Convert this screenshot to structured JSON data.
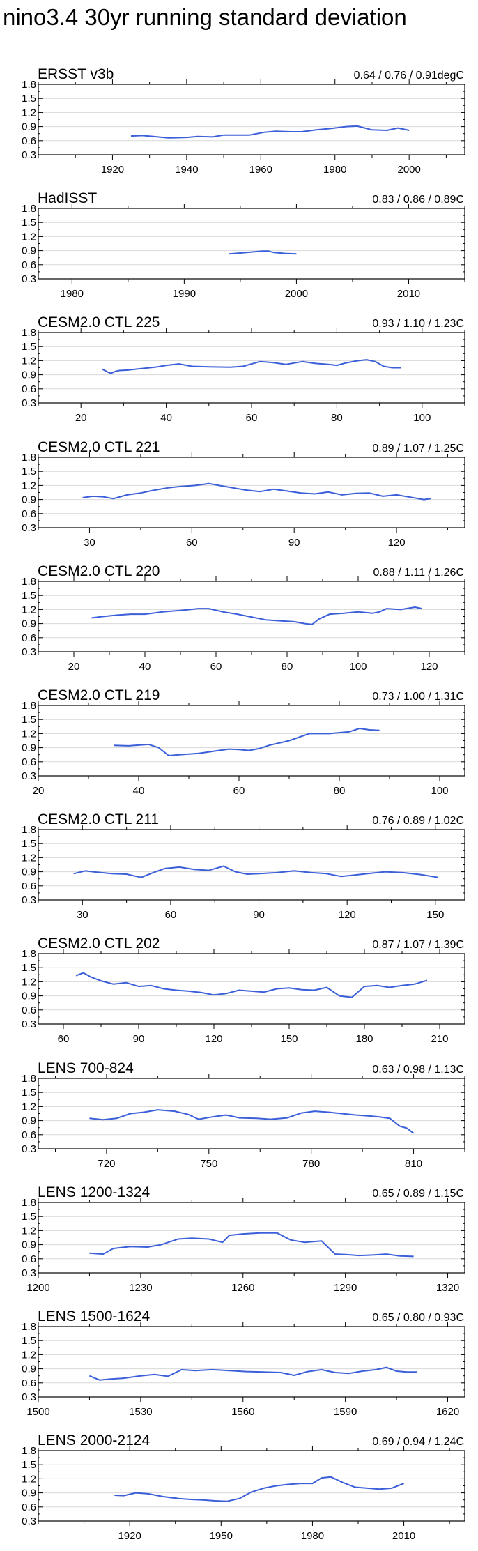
{
  "title": "nino3.4 30yr running standard deviation",
  "colors": {
    "line": "#3B5FD9",
    "axis": "#000000",
    "grid": "#D9D9D9",
    "text": "#000000"
  },
  "chart_data": [
    {
      "type": "line",
      "name": "ERSST v3b",
      "stats": "0.64 / 0.76 / 0.91degC",
      "xlim": [
        1900,
        2015
      ],
      "ylim": [
        0.3,
        1.8
      ],
      "xticks": [
        1920,
        1940,
        1960,
        1980,
        2000
      ],
      "yticks": [
        0.3,
        0.6,
        0.9,
        1.2,
        1.5,
        1.8
      ],
      "x": [
        1925,
        1928,
        1931,
        1935,
        1940,
        1943,
        1947,
        1950,
        1954,
        1957,
        1961,
        1964,
        1968,
        1971,
        1975,
        1979,
        1983,
        1986,
        1990,
        1994,
        1997,
        2000
      ],
      "values": [
        0.7,
        0.71,
        0.69,
        0.66,
        0.67,
        0.69,
        0.68,
        0.72,
        0.72,
        0.72,
        0.78,
        0.8,
        0.79,
        0.79,
        0.83,
        0.86,
        0.9,
        0.91,
        0.83,
        0.82,
        0.87,
        0.82
      ]
    },
    {
      "type": "line",
      "name": "HadISST",
      "stats": "0.83 / 0.86 / 0.89C",
      "xlim": [
        1977,
        2015
      ],
      "ylim": [
        0.3,
        1.8
      ],
      "xticks": [
        1980,
        1990,
        2000,
        2010
      ],
      "yticks": [
        0.3,
        0.6,
        0.9,
        1.2,
        1.5,
        1.8
      ],
      "x": [
        1994,
        1995,
        1996,
        1997,
        1997.5,
        1998,
        1999,
        2000
      ],
      "values": [
        0.83,
        0.85,
        0.87,
        0.89,
        0.89,
        0.86,
        0.84,
        0.83
      ]
    },
    {
      "type": "line",
      "name": "CESM2.0 CTL 225",
      "stats": "0.93 / 1.10 / 1.23C",
      "xlim": [
        10,
        110
      ],
      "ylim": [
        0.3,
        1.8
      ],
      "xticks": [
        20,
        40,
        60,
        80,
        100
      ],
      "yticks": [
        0.3,
        0.6,
        0.9,
        1.2,
        1.5,
        1.8
      ],
      "x": [
        25,
        26,
        27,
        28,
        29,
        31,
        33,
        35,
        38,
        40,
        43,
        46,
        50,
        55,
        58,
        62,
        65,
        68,
        72,
        75,
        78,
        80,
        82,
        85,
        87,
        89,
        91,
        93,
        95
      ],
      "values": [
        1.02,
        0.97,
        0.93,
        0.97,
        0.99,
        1.0,
        1.02,
        1.04,
        1.07,
        1.1,
        1.13,
        1.08,
        1.07,
        1.06,
        1.08,
        1.18,
        1.16,
        1.12,
        1.18,
        1.14,
        1.12,
        1.1,
        1.15,
        1.2,
        1.22,
        1.18,
        1.08,
        1.05,
        1.05
      ]
    },
    {
      "type": "line",
      "name": "CESM2.0 CTL 221",
      "stats": "0.89 / 1.07 / 1.25C",
      "xlim": [
        15,
        140
      ],
      "ylim": [
        0.3,
        1.8
      ],
      "xticks": [
        30,
        60,
        90,
        120
      ],
      "yticks": [
        0.3,
        0.6,
        0.9,
        1.2,
        1.5,
        1.8
      ],
      "x": [
        28,
        31,
        34,
        37,
        41,
        45,
        49,
        53,
        57,
        61,
        65,
        68,
        72,
        76,
        80,
        84,
        88,
        92,
        96,
        100,
        104,
        108,
        112,
        116,
        120,
        124,
        128,
        130
      ],
      "values": [
        0.94,
        0.97,
        0.96,
        0.92,
        1.0,
        1.04,
        1.1,
        1.15,
        1.18,
        1.2,
        1.24,
        1.2,
        1.15,
        1.1,
        1.07,
        1.12,
        1.08,
        1.04,
        1.02,
        1.06,
        1.0,
        1.03,
        1.04,
        0.97,
        1.0,
        0.95,
        0.9,
        0.92
      ]
    },
    {
      "type": "line",
      "name": "CESM2.0 CTL 220",
      "stats": "0.88 / 1.11 / 1.26C",
      "xlim": [
        10,
        130
      ],
      "ylim": [
        0.3,
        1.8
      ],
      "xticks": [
        20,
        40,
        60,
        80,
        100,
        120
      ],
      "yticks": [
        0.3,
        0.6,
        0.9,
        1.2,
        1.5,
        1.8
      ],
      "x": [
        25,
        28,
        32,
        36,
        40,
        45,
        50,
        55,
        58,
        62,
        66,
        70,
        74,
        78,
        82,
        85,
        87,
        89,
        92,
        96,
        100,
        104,
        106,
        108,
        112,
        116,
        118
      ],
      "values": [
        1.02,
        1.05,
        1.08,
        1.1,
        1.1,
        1.15,
        1.18,
        1.22,
        1.22,
        1.15,
        1.1,
        1.04,
        0.98,
        0.96,
        0.94,
        0.9,
        0.88,
        1.0,
        1.1,
        1.12,
        1.15,
        1.12,
        1.15,
        1.22,
        1.2,
        1.25,
        1.22
      ]
    },
    {
      "type": "line",
      "name": "CESM2.0 CTL 219",
      "stats": "0.73 / 1.00 / 1.31C",
      "xlim": [
        20,
        105
      ],
      "ylim": [
        0.3,
        1.8
      ],
      "xticks": [
        20,
        40,
        60,
        80,
        100
      ],
      "yticks": [
        0.3,
        0.6,
        0.9,
        1.2,
        1.5,
        1.8
      ],
      "x": [
        35,
        38,
        42,
        44,
        46,
        48,
        52,
        56,
        58,
        60,
        62,
        64,
        66,
        70,
        74,
        78,
        82,
        84,
        86,
        88
      ],
      "values": [
        0.95,
        0.94,
        0.97,
        0.9,
        0.73,
        0.75,
        0.78,
        0.84,
        0.87,
        0.86,
        0.84,
        0.88,
        0.95,
        1.05,
        1.2,
        1.2,
        1.24,
        1.31,
        1.28,
        1.27
      ]
    },
    {
      "type": "line",
      "name": "CESM2.0 CTL 211",
      "stats": "0.76 / 0.89 / 1.02C",
      "xlim": [
        15,
        160
      ],
      "ylim": [
        0.3,
        1.8
      ],
      "xticks": [
        30,
        60,
        90,
        120,
        150
      ],
      "yticks": [
        0.3,
        0.6,
        0.9,
        1.2,
        1.5,
        1.8
      ],
      "x": [
        27,
        31,
        35,
        40,
        45,
        50,
        54,
        58,
        63,
        68,
        73,
        78,
        82,
        86,
        90,
        96,
        102,
        108,
        113,
        118,
        121,
        127,
        133,
        139,
        145,
        151
      ],
      "values": [
        0.86,
        0.92,
        0.89,
        0.86,
        0.85,
        0.78,
        0.88,
        0.97,
        1.0,
        0.95,
        0.93,
        1.02,
        0.9,
        0.85,
        0.86,
        0.88,
        0.92,
        0.88,
        0.86,
        0.8,
        0.82,
        0.86,
        0.9,
        0.88,
        0.84,
        0.78
      ]
    },
    {
      "type": "line",
      "name": "CESM2.0 CTL 202",
      "stats": "0.87 / 1.07 / 1.39C",
      "xlim": [
        50,
        220
      ],
      "ylim": [
        0.3,
        1.8
      ],
      "xticks": [
        60,
        90,
        120,
        150,
        180,
        210
      ],
      "yticks": [
        0.3,
        0.6,
        0.9,
        1.2,
        1.5,
        1.8
      ],
      "x": [
        65,
        68,
        71,
        75,
        80,
        85,
        90,
        95,
        100,
        105,
        110,
        115,
        120,
        125,
        130,
        135,
        140,
        145,
        150,
        155,
        160,
        165,
        170,
        175,
        180,
        185,
        190,
        195,
        200,
        205
      ],
      "values": [
        1.33,
        1.39,
        1.3,
        1.22,
        1.15,
        1.18,
        1.1,
        1.12,
        1.05,
        1.02,
        1.0,
        0.97,
        0.92,
        0.95,
        1.02,
        1.0,
        0.98,
        1.05,
        1.07,
        1.03,
        1.02,
        1.08,
        0.9,
        0.87,
        1.1,
        1.12,
        1.08,
        1.12,
        1.15,
        1.23
      ]
    },
    {
      "type": "line",
      "name": "LENS 700-824",
      "stats": "0.63 / 0.98 / 1.13C",
      "xlim": [
        700,
        825
      ],
      "ylim": [
        0.3,
        1.8
      ],
      "xticks": [
        720,
        750,
        780,
        810
      ],
      "yticks": [
        0.3,
        0.6,
        0.9,
        1.2,
        1.5,
        1.8
      ],
      "x": [
        715,
        719,
        723,
        727,
        731,
        735,
        740,
        744,
        747,
        751,
        755,
        759,
        764,
        768,
        773,
        777,
        781,
        785,
        789,
        793,
        797,
        800,
        803,
        806,
        808,
        810
      ],
      "values": [
        0.95,
        0.92,
        0.95,
        1.05,
        1.08,
        1.13,
        1.1,
        1.03,
        0.93,
        0.98,
        1.02,
        0.96,
        0.95,
        0.93,
        0.96,
        1.06,
        1.1,
        1.08,
        1.05,
        1.02,
        1.0,
        0.98,
        0.95,
        0.78,
        0.74,
        0.63
      ]
    },
    {
      "type": "line",
      "name": "LENS 1200-1324",
      "stats": "0.65 / 0.89 / 1.15C",
      "xlim": [
        1200,
        1325
      ],
      "ylim": [
        0.3,
        1.8
      ],
      "xticks": [
        1200,
        1230,
        1260,
        1290,
        1320
      ],
      "yticks": [
        0.3,
        0.6,
        0.9,
        1.2,
        1.5,
        1.8
      ],
      "x": [
        1215,
        1219,
        1222,
        1227,
        1232,
        1236,
        1241,
        1245,
        1250,
        1254,
        1256,
        1260,
        1265,
        1270,
        1274,
        1278,
        1283,
        1287,
        1290,
        1294,
        1298,
        1302,
        1306,
        1310
      ],
      "values": [
        0.72,
        0.7,
        0.82,
        0.86,
        0.85,
        0.9,
        1.02,
        1.04,
        1.02,
        0.95,
        1.1,
        1.13,
        1.15,
        1.15,
        1.0,
        0.95,
        0.98,
        0.7,
        0.69,
        0.67,
        0.68,
        0.7,
        0.66,
        0.65
      ]
    },
    {
      "type": "line",
      "name": "LENS 1500-1624",
      "stats": "0.65 / 0.80 / 0.93C",
      "xlim": [
        1500,
        1625
      ],
      "ylim": [
        0.3,
        1.8
      ],
      "xticks": [
        1500,
        1530,
        1560,
        1590,
        1620
      ],
      "yticks": [
        0.3,
        0.6,
        0.9,
        1.2,
        1.5,
        1.8
      ],
      "x": [
        1515,
        1518,
        1521,
        1525,
        1530,
        1534,
        1538,
        1542,
        1546,
        1551,
        1556,
        1561,
        1566,
        1571,
        1575,
        1579,
        1583,
        1587,
        1591,
        1595,
        1599,
        1602,
        1605,
        1608,
        1611
      ],
      "values": [
        0.75,
        0.66,
        0.68,
        0.7,
        0.75,
        0.78,
        0.74,
        0.88,
        0.86,
        0.88,
        0.86,
        0.84,
        0.83,
        0.82,
        0.76,
        0.84,
        0.88,
        0.82,
        0.8,
        0.85,
        0.88,
        0.93,
        0.85,
        0.83,
        0.83
      ]
    },
    {
      "type": "line",
      "name": "LENS 2000-2124",
      "stats": "0.69 / 0.94 / 1.24C",
      "xlim": [
        1890,
        2030
      ],
      "ylim": [
        0.3,
        1.8
      ],
      "xticks": [
        1920,
        1950,
        1980,
        2010
      ],
      "yticks": [
        0.3,
        0.6,
        0.9,
        1.2,
        1.5,
        1.8
      ],
      "x": [
        1915,
        1918,
        1922,
        1926,
        1931,
        1936,
        1940,
        1944,
        1948,
        1952,
        1956,
        1960,
        1964,
        1968,
        1972,
        1976,
        1980,
        1983,
        1986,
        1990,
        1994,
        1998,
        2002,
        2006,
        2010
      ],
      "values": [
        0.85,
        0.84,
        0.9,
        0.88,
        0.82,
        0.78,
        0.76,
        0.75,
        0.73,
        0.72,
        0.78,
        0.92,
        1.0,
        1.05,
        1.08,
        1.1,
        1.1,
        1.22,
        1.24,
        1.12,
        1.02,
        1.0,
        0.98,
        1.0,
        1.1
      ]
    }
  ]
}
